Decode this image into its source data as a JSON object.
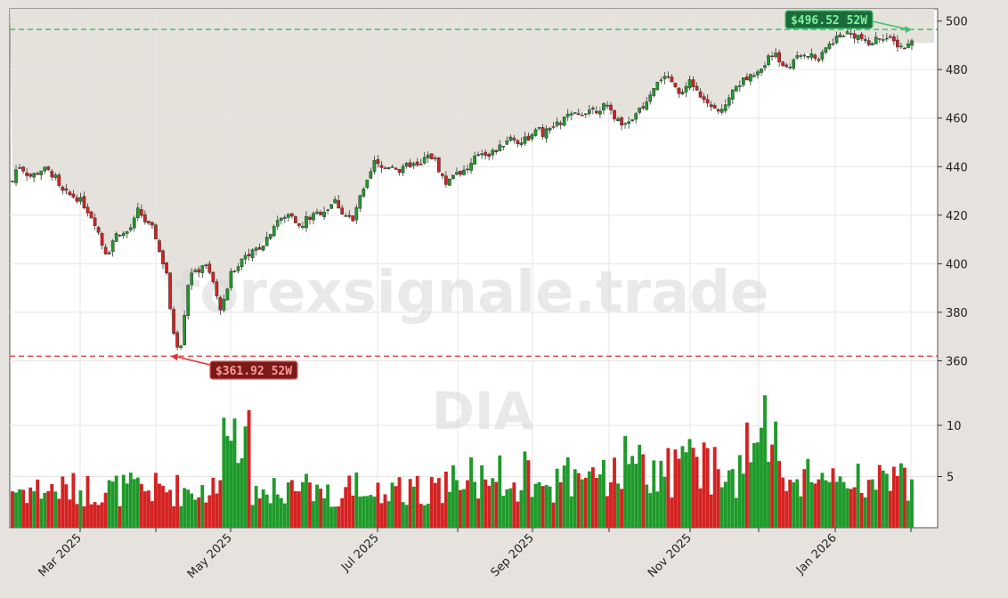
{
  "watermark": {
    "site": "forexsignale.trade",
    "symbol": "DIA"
  },
  "annotations": {
    "high_label": "$496.52 52W",
    "low_label": "$361.92 52W"
  },
  "colors": {
    "up": "#1e9a2a",
    "down": "#d42222",
    "high_line": "#3cc46a",
    "low_line": "#e05555",
    "grid": "#e4e4e4",
    "background": "#e6e3de"
  },
  "chart_data": {
    "type": "candlestick",
    "ticker": "DIA",
    "price_axis": {
      "ticks": [
        360,
        380,
        400,
        420,
        440,
        460,
        480,
        500
      ],
      "range": [
        351,
        505
      ]
    },
    "volume_axis": {
      "ticks": [
        5,
        10
      ]
    },
    "x_axis": {
      "tick_labels": [
        "Mar 2025",
        "May 2025",
        "Jul 2025",
        "Sep 2025",
        "Nov 2025",
        "Jan 2026"
      ]
    },
    "high_52w": 496.52,
    "low_52w": 361.92,
    "price_points": [
      [
        0,
        434
      ],
      [
        5,
        441
      ],
      [
        10,
        439
      ],
      [
        16,
        436
      ],
      [
        22,
        437
      ],
      [
        28,
        439
      ],
      [
        34,
        438
      ],
      [
        40,
        436
      ],
      [
        45,
        430
      ],
      [
        50,
        429
      ],
      [
        56,
        428
      ],
      [
        62,
        427
      ],
      [
        68,
        424
      ],
      [
        74,
        420
      ],
      [
        78,
        417
      ],
      [
        82,
        412
      ],
      [
        86,
        406
      ],
      [
        90,
        404
      ],
      [
        94,
        409
      ],
      [
        98,
        412
      ],
      [
        102,
        413
      ],
      [
        106,
        412
      ],
      [
        110,
        414
      ],
      [
        114,
        416
      ],
      [
        118,
        422
      ],
      [
        122,
        420
      ],
      [
        126,
        417
      ],
      [
        130,
        415
      ],
      [
        134,
        414
      ],
      [
        138,
        406
      ],
      [
        142,
        401
      ],
      [
        146,
        396
      ],
      [
        150,
        375
      ],
      [
        154,
        370
      ],
      [
        158,
        363
      ],
      [
        162,
        378
      ],
      [
        166,
        392
      ],
      [
        170,
        398
      ],
      [
        174,
        395
      ],
      [
        178,
        400
      ],
      [
        182,
        399
      ],
      [
        186,
        396
      ],
      [
        190,
        392
      ],
      [
        194,
        384
      ],
      [
        198,
        381
      ],
      [
        202,
        388
      ],
      [
        206,
        395
      ],
      [
        210,
        398
      ],
      [
        214,
        400
      ],
      [
        218,
        403
      ],
      [
        222,
        405
      ],
      [
        226,
        404
      ],
      [
        230,
        406
      ],
      [
        234,
        407
      ],
      [
        238,
        409
      ],
      [
        242,
        412
      ],
      [
        246,
        415
      ],
      [
        250,
        418
      ],
      [
        254,
        418
      ],
      [
        258,
        419
      ],
      [
        262,
        421
      ],
      [
        266,
        420
      ],
      [
        270,
        415
      ],
      [
        274,
        415
      ],
      [
        278,
        419
      ],
      [
        282,
        419
      ],
      [
        286,
        420
      ],
      [
        290,
        421
      ],
      [
        294,
        422
      ],
      [
        298,
        423
      ],
      [
        302,
        425
      ],
      [
        306,
        426
      ],
      [
        310,
        422
      ],
      [
        314,
        420
      ],
      [
        318,
        419
      ],
      [
        322,
        417
      ],
      [
        326,
        425
      ],
      [
        330,
        428
      ],
      [
        334,
        432
      ],
      [
        338,
        436
      ],
      [
        342,
        442
      ],
      [
        346,
        440
      ],
      [
        350,
        439
      ],
      [
        354,
        440
      ],
      [
        358,
        441
      ],
      [
        362,
        440
      ],
      [
        366,
        438
      ],
      [
        370,
        439
      ],
      [
        374,
        441
      ],
      [
        378,
        441
      ],
      [
        382,
        440
      ],
      [
        386,
        440
      ],
      [
        390,
        444
      ],
      [
        394,
        444
      ],
      [
        398,
        444
      ],
      [
        402,
        440
      ],
      [
        406,
        436
      ],
      [
        410,
        433
      ],
      [
        414,
        436
      ],
      [
        418,
        438
      ],
      [
        422,
        438
      ],
      [
        426,
        438
      ],
      [
        430,
        439
      ],
      [
        434,
        441
      ],
      [
        438,
        444
      ],
      [
        442,
        446
      ],
      [
        446,
        446
      ],
      [
        450,
        445
      ],
      [
        454,
        446
      ],
      [
        458,
        447
      ],
      [
        462,
        448
      ],
      [
        466,
        451
      ],
      [
        470,
        452
      ],
      [
        474,
        451
      ],
      [
        478,
        450
      ],
      [
        482,
        451
      ],
      [
        486,
        452
      ],
      [
        490,
        452
      ],
      [
        494,
        454
      ],
      [
        498,
        455
      ],
      [
        502,
        453
      ],
      [
        506,
        455
      ],
      [
        510,
        456
      ],
      [
        514,
        457
      ],
      [
        518,
        458
      ],
      [
        522,
        460
      ],
      [
        526,
        461
      ],
      [
        530,
        461
      ],
      [
        534,
        461
      ],
      [
        538,
        462
      ],
      [
        542,
        463
      ],
      [
        546,
        464
      ],
      [
        550,
        463
      ],
      [
        554,
        464
      ],
      [
        558,
        465
      ],
      [
        562,
        464
      ],
      [
        566,
        463
      ],
      [
        570,
        460
      ],
      [
        574,
        458
      ],
      [
        578,
        459
      ],
      [
        582,
        460
      ],
      [
        586,
        458
      ],
      [
        590,
        462
      ],
      [
        594,
        464
      ],
      [
        598,
        466
      ],
      [
        602,
        468
      ],
      [
        606,
        471
      ],
      [
        610,
        476
      ],
      [
        614,
        477
      ],
      [
        618,
        476
      ],
      [
        622,
        475
      ],
      [
        626,
        472
      ],
      [
        630,
        470
      ],
      [
        634,
        471
      ],
      [
        638,
        476
      ],
      [
        642,
        474
      ],
      [
        646,
        473
      ],
      [
        650,
        468
      ],
      [
        654,
        466
      ],
      [
        658,
        466
      ],
      [
        662,
        465
      ],
      [
        666,
        462
      ],
      [
        670,
        464
      ],
      [
        674,
        467
      ],
      [
        678,
        469
      ],
      [
        682,
        472
      ],
      [
        686,
        474
      ],
      [
        690,
        475
      ],
      [
        694,
        477
      ],
      [
        698,
        477
      ],
      [
        702,
        476
      ],
      [
        706,
        479
      ],
      [
        710,
        482
      ],
      [
        714,
        486
      ],
      [
        718,
        487
      ],
      [
        722,
        485
      ],
      [
        726,
        483
      ],
      [
        730,
        481
      ],
      [
        734,
        482
      ],
      [
        738,
        483
      ],
      [
        742,
        485
      ],
      [
        746,
        486
      ],
      [
        750,
        487
      ],
      [
        754,
        486
      ],
      [
        758,
        485
      ],
      [
        762,
        484
      ],
      [
        766,
        486
      ],
      [
        770,
        490
      ],
      [
        774,
        491
      ],
      [
        778,
        493
      ],
      [
        782,
        494
      ],
      [
        786,
        495
      ],
      [
        790,
        495
      ],
      [
        794,
        494
      ],
      [
        798,
        494
      ],
      [
        802,
        493
      ],
      [
        806,
        491
      ],
      [
        810,
        490
      ],
      [
        814,
        492
      ],
      [
        818,
        493
      ],
      [
        822,
        494
      ],
      [
        826,
        493
      ],
      [
        830,
        492
      ],
      [
        834,
        491
      ],
      [
        838,
        490
      ],
      [
        842,
        489
      ],
      [
        846,
        490
      ],
      [
        850,
        491
      ]
    ],
    "volume_note": "volume bars colored by candle direction"
  }
}
